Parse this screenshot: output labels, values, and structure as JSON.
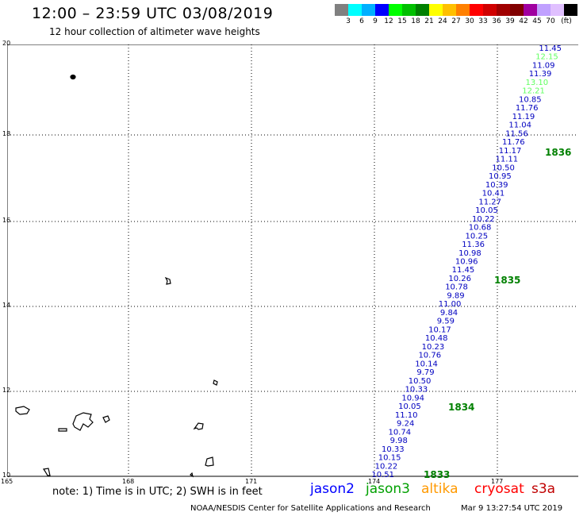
{
  "header": {
    "title": "12:00 – 23:59 UTC 03/08/2019",
    "subtitle": "12 hour collection of altimeter wave heights"
  },
  "color_scale": {
    "unit": "(ft)",
    "swatches": [
      "#808080",
      "#00ffff",
      "#00b0ff",
      "#0000ff",
      "#00ff00",
      "#00c000",
      "#008000",
      "#ffff00",
      "#ffc000",
      "#ff8000",
      "#ff0000",
      "#d00000",
      "#a00000",
      "#800000",
      "#a000a0",
      "#c0a0ff",
      "#e0c0ff",
      "#000000"
    ],
    "labels": [
      "3",
      "6",
      "9",
      "12",
      "15",
      "18",
      "21",
      "24",
      "27",
      "30",
      "33",
      "36",
      "39",
      "42",
      "45",
      "70"
    ]
  },
  "axes": {
    "lat_labels": [
      "20",
      "18",
      "16",
      "14",
      "12",
      "10"
    ],
    "lon_labels": [
      "165",
      "168",
      "171",
      "174",
      "177"
    ]
  },
  "track": {
    "labels": [
      {
        "t": "11.45",
        "c": "#0000c0"
      },
      {
        "t": "12.15",
        "c": "#60ff60"
      },
      {
        "t": "11.09",
        "c": "#0000c0"
      },
      {
        "t": "11.39",
        "c": "#0000c0"
      },
      {
        "t": "13.10",
        "c": "#60ff60"
      },
      {
        "t": "12.21",
        "c": "#60ff60"
      },
      {
        "t": "10.85",
        "c": "#0000c0"
      },
      {
        "t": "11.76",
        "c": "#0000c0"
      },
      {
        "t": "11.19",
        "c": "#0000c0"
      },
      {
        "t": "11.04",
        "c": "#0000c0"
      },
      {
        "t": "11.56",
        "c": "#0000c0"
      },
      {
        "t": "11.76",
        "c": "#0000c0"
      },
      {
        "t": "11.17",
        "c": "#0000c0"
      },
      {
        "t": "11.11",
        "c": "#0000c0"
      },
      {
        "t": "10.50",
        "c": "#0000c0"
      },
      {
        "t": "10.95",
        "c": "#0000c0"
      },
      {
        "t": "10.39",
        "c": "#0000c0"
      },
      {
        "t": "10.41",
        "c": "#0000c0"
      },
      {
        "t": "11.27",
        "c": "#0000c0"
      },
      {
        "t": "10.05",
        "c": "#0000c0"
      },
      {
        "t": "10.22",
        "c": "#0000c0"
      },
      {
        "t": "10.68",
        "c": "#0000c0"
      },
      {
        "t": "10.25",
        "c": "#0000c0"
      },
      {
        "t": "11.36",
        "c": "#0000c0"
      },
      {
        "t": "10.98",
        "c": "#0000c0"
      },
      {
        "t": "10.96",
        "c": "#0000c0"
      },
      {
        "t": "11.45",
        "c": "#0000c0"
      },
      {
        "t": "10.26",
        "c": "#0000c0"
      },
      {
        "t": "10.78",
        "c": "#0000c0"
      },
      {
        "t": "9.89",
        "c": "#0000c0"
      },
      {
        "t": "11.00",
        "c": "#0000c0"
      },
      {
        "t": "9.84",
        "c": "#0000c0"
      },
      {
        "t": "9.59",
        "c": "#0000c0"
      },
      {
        "t": "10.17",
        "c": "#0000c0"
      },
      {
        "t": "10.48",
        "c": "#0000c0"
      },
      {
        "t": "10.23",
        "c": "#0000c0"
      },
      {
        "t": "10.76",
        "c": "#0000c0"
      },
      {
        "t": "10.14",
        "c": "#0000c0"
      },
      {
        "t": "9.79",
        "c": "#0000c0"
      },
      {
        "t": "10.50",
        "c": "#0000c0"
      },
      {
        "t": "10.33",
        "c": "#0000c0"
      },
      {
        "t": "10.94",
        "c": "#0000c0"
      },
      {
        "t": "10.05",
        "c": "#0000c0"
      },
      {
        "t": "11.10",
        "c": "#0000c0"
      },
      {
        "t": "9.24",
        "c": "#0000c0"
      },
      {
        "t": "10.74",
        "c": "#0000c0"
      },
      {
        "t": "9.98",
        "c": "#0000c0"
      },
      {
        "t": "10.33",
        "c": "#0000c0"
      },
      {
        "t": "10.15",
        "c": "#0000c0"
      },
      {
        "t": "10.22",
        "c": "#0000c0"
      },
      {
        "t": "10.51",
        "c": "#0000c0"
      }
    ],
    "times": [
      "1836",
      "1835",
      "1834",
      "1833"
    ]
  },
  "footer": {
    "note": "note: 1) Time is in UTC; 2) SWH is in feet",
    "satellites": [
      {
        "name": "jason2",
        "color": "#0000ff"
      },
      {
        "name": "jason3",
        "color": "#00a000"
      },
      {
        "name": "altika",
        "color": "#ff9900"
      },
      {
        "name": "cryosat",
        "color": "#ff0000"
      },
      {
        "name": "s3a",
        "color": "#c00000"
      }
    ],
    "credit": "NOAA/NESDIS Center for Satellite Applications and Research",
    "timestamp": "Mar  9 13:27:54 UTC 2019"
  }
}
